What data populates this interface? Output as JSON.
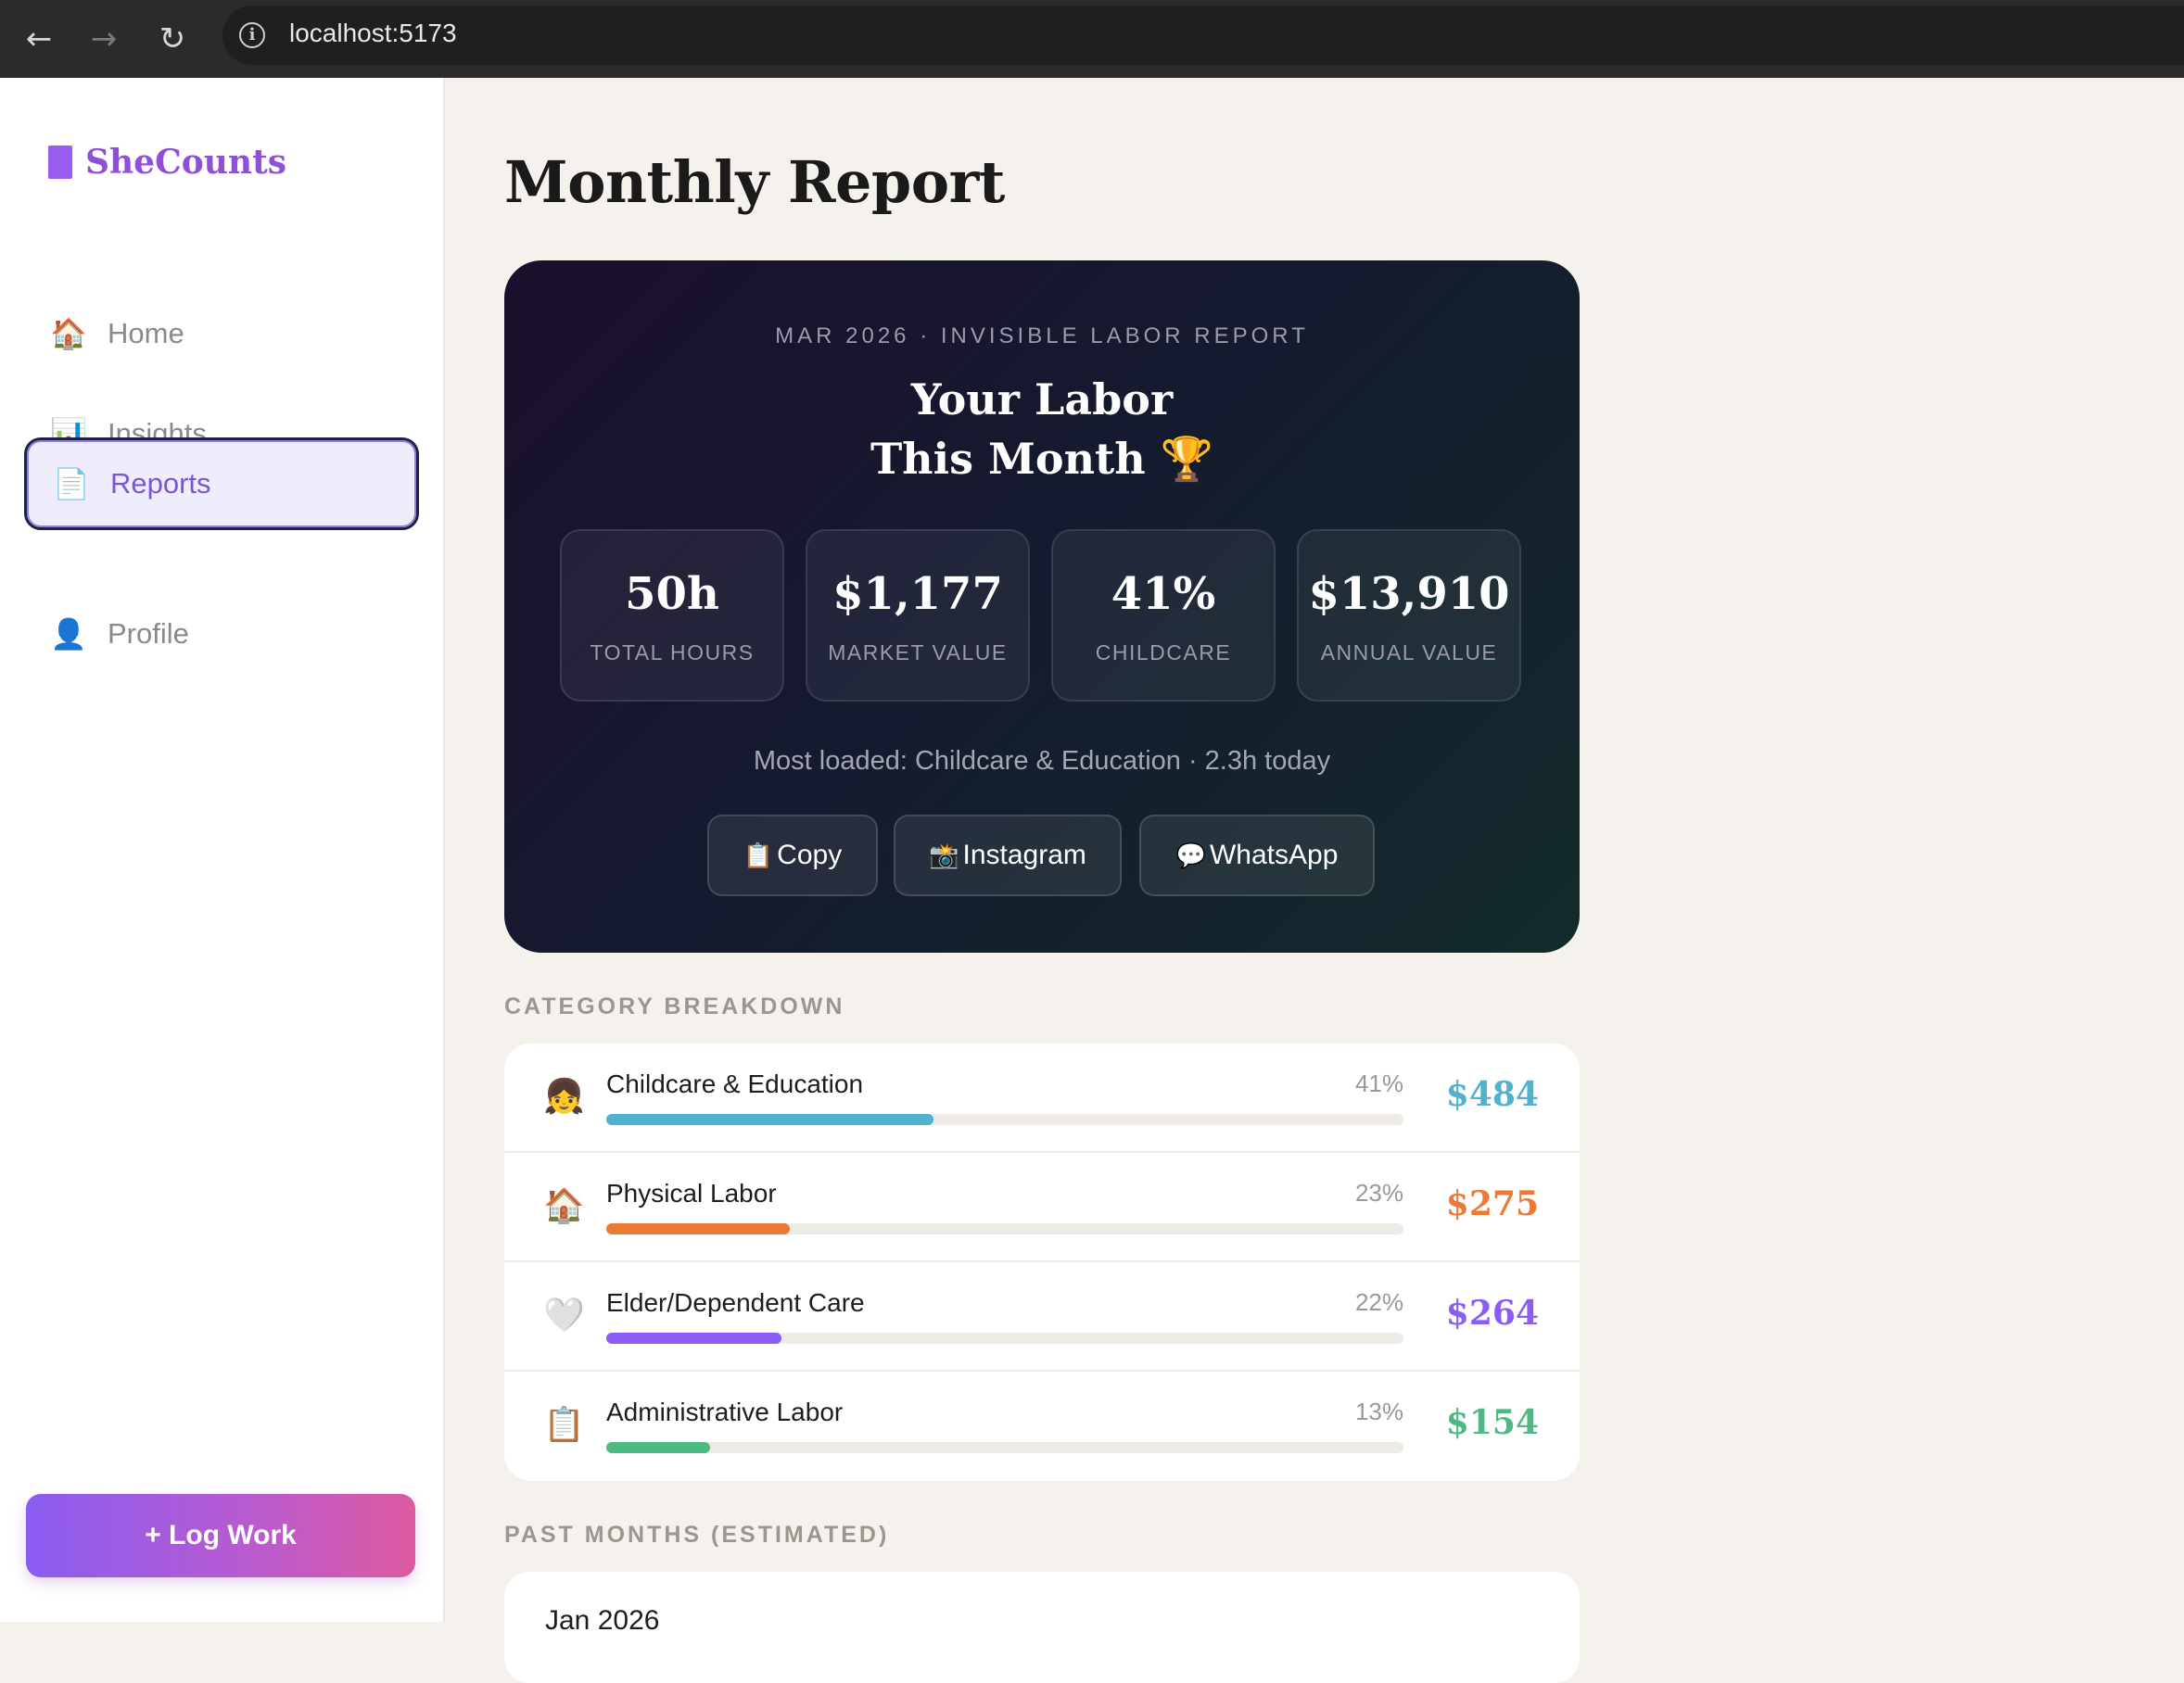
{
  "browser": {
    "url": "localhost:5173",
    "back_icon": "arrow-left-icon",
    "forward_icon": "arrow-right-icon",
    "reload_icon": "reload-icon",
    "info_icon": "info-icon"
  },
  "sidebar": {
    "brand": "SheCounts",
    "items": [
      {
        "icon": "🏠",
        "label": "Home",
        "active": false
      },
      {
        "icon": "📊",
        "label": "Insights",
        "active": false
      },
      {
        "icon": "📄",
        "label": "Reports",
        "active": true
      },
      {
        "icon": "👤",
        "label": "Profile",
        "active": false
      }
    ],
    "log_button": "+ Log Work"
  },
  "main": {
    "title": "Monthly Report",
    "hero": {
      "eyebrow": "MAR 2026 · INVISIBLE LABOR REPORT",
      "headline_line1": "Your Labor",
      "headline_line2": "This Month 🏆",
      "stats": [
        {
          "value": "50h",
          "label": "TOTAL HOURS"
        },
        {
          "value": "$1,177",
          "label": "MARKET VALUE"
        },
        {
          "value": "41%",
          "label": "CHILDCARE"
        },
        {
          "value": "$13,910",
          "label": "ANNUAL VALUE"
        }
      ],
      "most_loaded": "Most loaded: Childcare & Education · 2.3h today",
      "share_buttons": [
        {
          "icon": "📋",
          "label": "Copy"
        },
        {
          "icon": "📸",
          "label": "Instagram"
        },
        {
          "icon": "💬",
          "label": "WhatsApp"
        }
      ]
    },
    "breakdown": {
      "section_label": "CATEGORY BREAKDOWN",
      "categories": [
        {
          "icon": "👧",
          "name": "Childcare & Education",
          "percent": "41%",
          "fraction": 0.41,
          "amount": "$484",
          "color": "#4fb3cf"
        },
        {
          "icon": "🏠",
          "name": "Physical Labor",
          "percent": "23%",
          "fraction": 0.23,
          "amount": "$275",
          "color": "#ec7a37"
        },
        {
          "icon": "🤍",
          "name": "Elder/Dependent Care",
          "percent": "22%",
          "fraction": 0.22,
          "amount": "$264",
          "color": "#8b5cf6"
        },
        {
          "icon": "📋",
          "name": "Administrative Labor",
          "percent": "13%",
          "fraction": 0.13,
          "amount": "$154",
          "color": "#4cba82"
        }
      ]
    },
    "past": {
      "section_label": "PAST MONTHS (ESTIMATED)",
      "first_month": "Jan 2026"
    }
  }
}
